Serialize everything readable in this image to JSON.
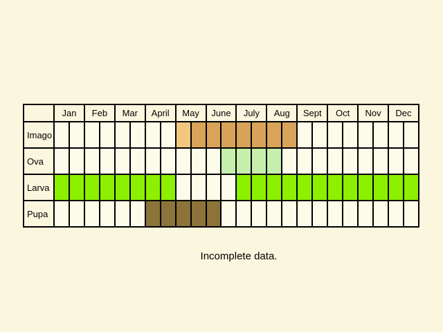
{
  "chart_data": {
    "type": "table",
    "columns": [
      "Jan",
      "Feb",
      "Mar",
      "April",
      "May",
      "June",
      "July",
      "Aug",
      "Sept",
      "Oct",
      "Nov",
      "Dec"
    ],
    "subdivisions_per_month": 2,
    "rows": [
      {
        "stage": "Imago",
        "active": [
          0,
          0,
          0,
          0,
          0,
          0,
          0,
          0,
          1,
          2,
          2,
          2,
          2,
          2,
          2,
          2,
          0,
          0,
          0,
          0,
          0,
          0,
          0,
          0
        ]
      },
      {
        "stage": "Ova",
        "active": [
          0,
          0,
          0,
          0,
          0,
          0,
          0,
          0,
          0,
          0,
          0,
          1,
          1,
          1,
          1,
          0,
          0,
          0,
          0,
          0,
          0,
          0,
          0,
          0
        ]
      },
      {
        "stage": "Larva",
        "active": [
          1,
          1,
          1,
          1,
          1,
          1,
          1,
          1,
          0,
          0,
          0,
          0,
          1,
          1,
          1,
          1,
          1,
          1,
          1,
          1,
          1,
          1,
          1,
          1
        ]
      },
      {
        "stage": "Pupa",
        "active": [
          0,
          0,
          0,
          0,
          0,
          0,
          1,
          1,
          1,
          1,
          1,
          0,
          0,
          0,
          0,
          0,
          0,
          0,
          0,
          0,
          0,
          0,
          0,
          0
        ]
      }
    ],
    "colors": {
      "Imago": [
        "#f3c77f",
        "#d9a35a"
      ],
      "Ova": [
        "#c6efae"
      ],
      "Larva": [
        "#8cf000"
      ],
      "Pupa": [
        "#8c7339"
      ]
    },
    "empty_color": "#fdfbe9"
  },
  "note": "Incomplete data."
}
